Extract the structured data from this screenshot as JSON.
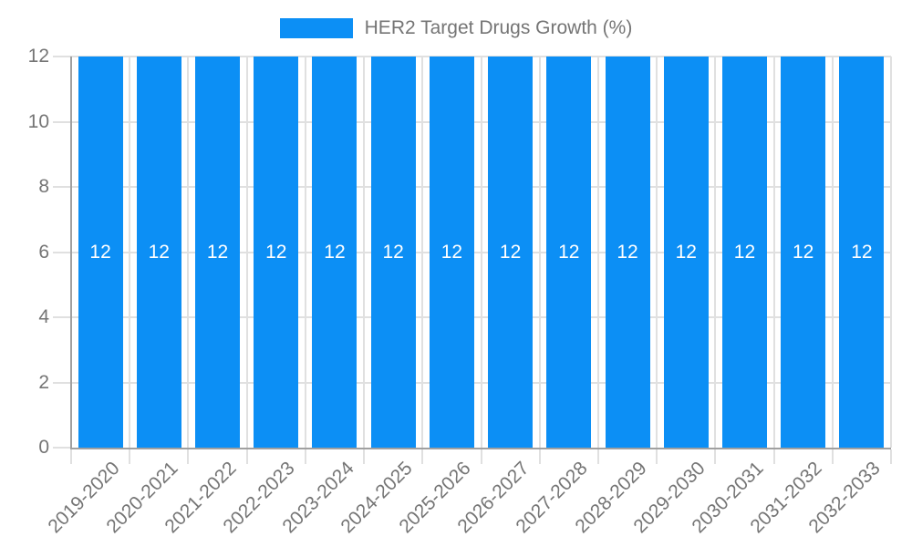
{
  "chart_data": {
    "type": "bar",
    "title": "HER2 Target Drugs Growth (%)",
    "legend_position": "top",
    "categories": [
      "2019-2020",
      "2020-2021",
      "2021-2022",
      "2022-2023",
      "2023-2024",
      "2024-2025",
      "2025-2026",
      "2026-2027",
      "2027-2028",
      "2028-2029",
      "2029-2030",
      "2030-2031",
      "2031-2032",
      "2032-2033"
    ],
    "series": [
      {
        "name": "HER2 Target Drugs Growth (%)",
        "values": [
          12,
          12,
          12,
          12,
          12,
          12,
          12,
          12,
          12,
          12,
          12,
          12,
          12,
          12
        ]
      }
    ],
    "value_labels_shown": true,
    "xlabel": "",
    "ylabel": "",
    "ylim": [
      0,
      12
    ],
    "yticks": [
      0,
      2,
      4,
      6,
      8,
      10,
      12
    ],
    "grid": true
  },
  "legend": {
    "label": "HER2 Target Drugs Growth (%)"
  },
  "colors": {
    "bar": "#0c8ff5",
    "grid": "#e0e0e0",
    "tick": "#e0e0e0",
    "axis": "#a0a0a0",
    "text": "#757575",
    "value_text": "#ffffff",
    "background": "#ffffff"
  }
}
